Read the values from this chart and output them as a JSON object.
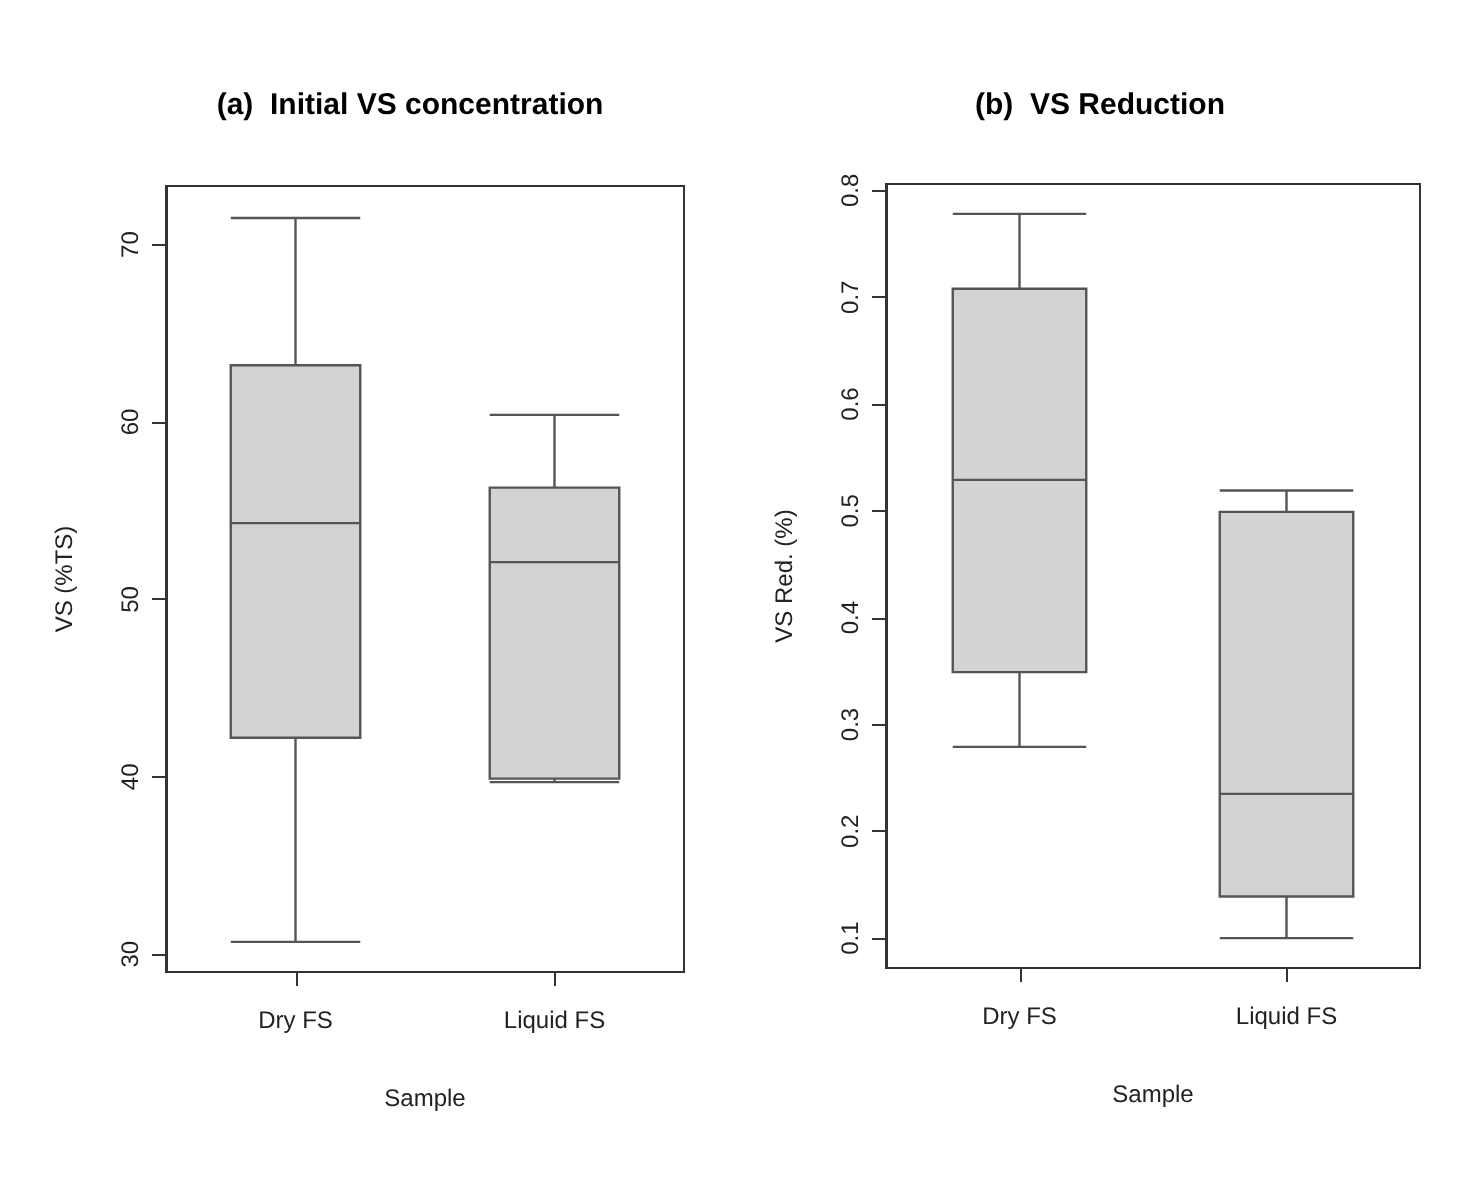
{
  "chart_data": [
    {
      "type": "box",
      "title": "(a)  Initial VS concentration",
      "xlabel": "Sample",
      "ylabel": "VS (%TS)",
      "categories": [
        "Dry FS",
        "Liquid FS"
      ],
      "ylim": [
        29.0,
        73.3
      ],
      "yticks": [
        30,
        40,
        50,
        60,
        70
      ],
      "series": [
        {
          "color": "#d3d3d3",
          "boxes": [
            {
              "low": 30.7,
              "q1": 42.2,
              "median": 54.3,
              "q3": 63.2,
              "high": 71.5
            },
            {
              "low": 39.7,
              "q1": 39.9,
              "median": 52.1,
              "q3": 56.3,
              "high": 60.4
            }
          ]
        }
      ]
    },
    {
      "type": "box",
      "title": "(b)  VS Reduction",
      "xlabel": "Sample",
      "ylabel": "VS Red. (%)",
      "categories": [
        "Dry FS",
        "Liquid FS"
      ],
      "ylim": [
        0.072,
        0.806
      ],
      "yticks": [
        0.1,
        0.2,
        0.3,
        0.4,
        0.5,
        0.6,
        0.7,
        0.8
      ],
      "series": [
        {
          "color": "#d3d3d3",
          "boxes": [
            {
              "low": 0.279,
              "q1": 0.349,
              "median": 0.529,
              "q3": 0.708,
              "high": 0.778
            },
            {
              "low": 0.1,
              "q1": 0.139,
              "median": 0.235,
              "q3": 0.499,
              "high": 0.519
            }
          ]
        }
      ]
    }
  ]
}
